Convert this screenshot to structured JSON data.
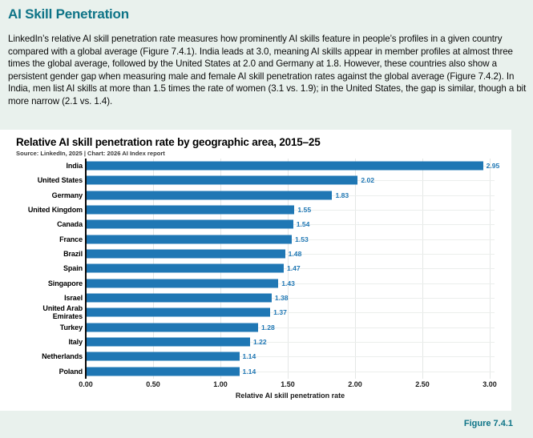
{
  "page": {
    "title": "AI Skill Penetration",
    "paragraph": "LinkedIn’s relative AI skill penetration rate measures how prominently AI skills feature in people’s profiles in a given country compared with a global average (Figure 7.4.1). India leads at 3.0, meaning AI skills appear in member profiles at almost three times the global average, followed by the United States at 2.0 and Germany at 1.8. However, these countries also show a persistent gender gap when measuring male and female AI skill penetration rates against the global average (Figure 7.4.2). In India, men list AI skills at more than 1.5 times the rate of women (3.1 vs. 1.9); in the United States, the gap is similar, though a bit more narrow (2.1 vs. 1.4).",
    "figure_label": "Figure 7.4.1"
  },
  "colors": {
    "accent_teal": "#0e7487",
    "bar_blue": "#1f77b4",
    "background_mint": "#e9f1ed",
    "card_white": "#ffffff"
  },
  "chart_data": {
    "type": "bar",
    "orientation": "horizontal",
    "title": "Relative AI skill penetration rate by geographic area, 2015–25",
    "source": "Source: LinkedIn, 2025 | Chart: 2026 AI Index report",
    "categories": [
      "India",
      "United States",
      "Germany",
      "United Kingdom",
      "Canada",
      "France",
      "Brazil",
      "Spain",
      "Singapore",
      "Israel",
      "United Arab Emirates",
      "Turkey",
      "Italy",
      "Netherlands",
      "Poland"
    ],
    "values": [
      2.95,
      2.02,
      1.83,
      1.55,
      1.54,
      1.53,
      1.48,
      1.47,
      1.43,
      1.38,
      1.37,
      1.28,
      1.22,
      1.14,
      1.14
    ],
    "value_labels": [
      "2.95",
      "2.02",
      "1.83",
      "1.55",
      "1.54",
      "1.53",
      "1.48",
      "1.47",
      "1.43",
      "1.38",
      "1.37",
      "1.28",
      "1.22",
      "1.14",
      "1.14"
    ],
    "xlabel": "Relative AI skill penetration rate",
    "xlim": [
      0,
      3.0
    ],
    "xticks": [
      "0.00",
      "0.50",
      "1.00",
      "1.50",
      "2.00",
      "2.50",
      "3.00"
    ],
    "grid": true,
    "legend": "none"
  }
}
